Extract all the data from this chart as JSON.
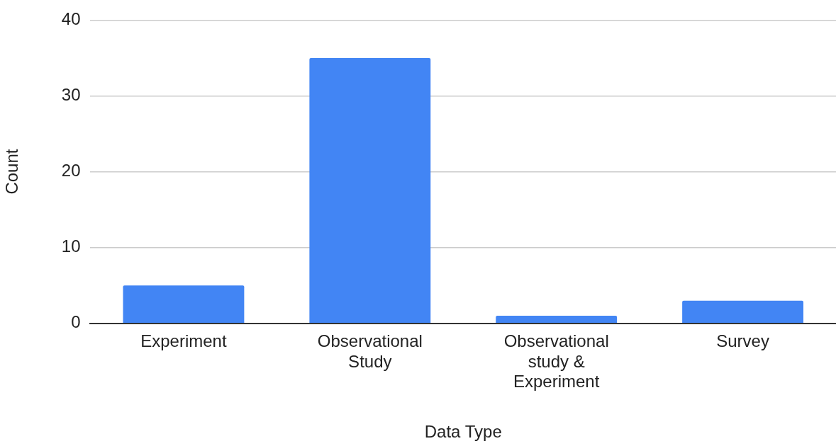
{
  "chart_data": {
    "type": "bar",
    "xlabel": "Data Type",
    "ylabel": "Count",
    "categories": [
      "Experiment",
      "Observational Study",
      "Observational study & Experiment",
      "Survey"
    ],
    "values": [
      5,
      35,
      1,
      3
    ],
    "color": "#4285f4",
    "ylim": [
      0,
      40
    ],
    "yticks": [
      0,
      10,
      20,
      30,
      40
    ],
    "grid": "y",
    "legend": false
  }
}
